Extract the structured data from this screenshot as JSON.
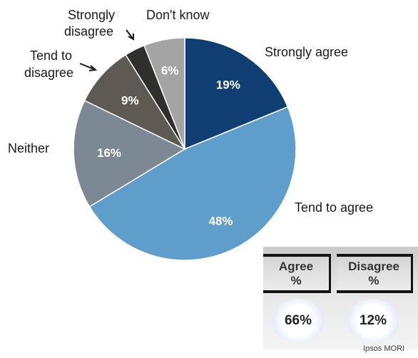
{
  "chart_data": {
    "type": "pie",
    "title": "",
    "categories": [
      "Strongly agree",
      "Tend to agree",
      "Neither",
      "Tend to disagree",
      "Strongly disagree",
      "Don't know"
    ],
    "values": [
      19,
      48,
      16,
      9,
      3,
      6
    ],
    "value_labels": [
      "19%",
      "48%",
      "16%",
      "9%",
      "",
      "6%"
    ],
    "label_lines": [
      [
        "Strongly agree"
      ],
      [
        "Tend to agree"
      ],
      [
        "Neither"
      ],
      [
        "Tend to",
        "disagree"
      ],
      [
        "Strongly",
        "disagree"
      ],
      [
        "Don't know"
      ]
    ],
    "colors": [
      "#0e3e72",
      "#5f9ecb",
      "#7c8893",
      "#5c5a52",
      "#2f302d",
      "#a4a4a4"
    ],
    "start": "12 o'clock",
    "direction": "clockwise"
  },
  "summary": {
    "agree_header": [
      "Agree",
      "%"
    ],
    "disagree_header": [
      "Disagree",
      "%"
    ],
    "agree_value": "66%",
    "disagree_value": "12%"
  },
  "source": "Ipsos MORI"
}
